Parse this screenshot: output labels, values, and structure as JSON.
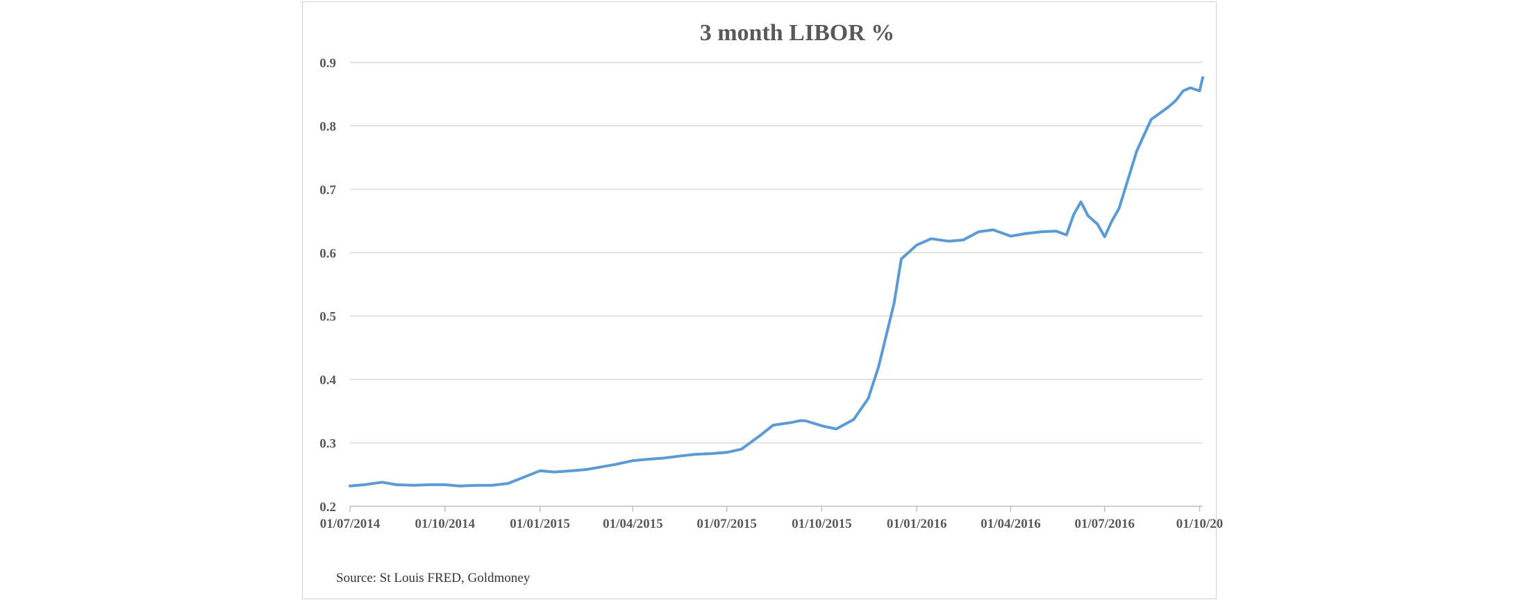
{
  "chart_data": {
    "type": "line",
    "title": "3 month LIBOR %",
    "xlabel": "",
    "ylabel": "",
    "ylim": [
      0.2,
      0.9
    ],
    "y_ticks": [
      "0.2",
      "0.3",
      "0.4",
      "0.5",
      "0.6",
      "0.7",
      "0.8",
      "0.9"
    ],
    "x_ticks": [
      "01/07/2014",
      "01/10/2014",
      "01/01/2015",
      "01/04/2015",
      "01/07/2015",
      "01/10/2015",
      "01/01/2016",
      "01/04/2016",
      "01/07/2016",
      "01/10/20"
    ],
    "x_tick_dates": [
      "2014-07-01",
      "2014-10-01",
      "2015-01-01",
      "2015-04-01",
      "2015-07-01",
      "2015-10-01",
      "2016-01-01",
      "2016-04-01",
      "2016-07-01",
      "2016-10-01"
    ],
    "xlim": [
      "2014-07-01",
      "2016-10-04"
    ],
    "grid": "horizontal",
    "line_color": "#5b9bd5",
    "series": [
      {
        "x": [
          "2014-07-01",
          "2014-07-15",
          "2014-08-01",
          "2014-08-15",
          "2014-09-01",
          "2014-09-15",
          "2014-10-01",
          "2014-10-15",
          "2014-11-01",
          "2014-11-15",
          "2014-12-01",
          "2014-12-15",
          "2015-01-01",
          "2015-01-15",
          "2015-02-01",
          "2015-02-15",
          "2015-03-01",
          "2015-03-15",
          "2015-04-01",
          "2015-04-15",
          "2015-05-01",
          "2015-05-15",
          "2015-06-01",
          "2015-06-15",
          "2015-07-01",
          "2015-07-15",
          "2015-08-01",
          "2015-08-15",
          "2015-09-01",
          "2015-09-10",
          "2015-09-15",
          "2015-10-01",
          "2015-10-15",
          "2015-11-01",
          "2015-11-15",
          "2015-11-25",
          "2015-12-01",
          "2015-12-10",
          "2015-12-17",
          "2016-01-01",
          "2016-01-15",
          "2016-02-01",
          "2016-02-15",
          "2016-03-01",
          "2016-03-15",
          "2016-04-01",
          "2016-04-15",
          "2016-05-01",
          "2016-05-15",
          "2016-05-25",
          "2016-06-01",
          "2016-06-08",
          "2016-06-15",
          "2016-06-24",
          "2016-07-01",
          "2016-07-08",
          "2016-07-15",
          "2016-08-01",
          "2016-08-15",
          "2016-09-01",
          "2016-09-08",
          "2016-09-15",
          "2016-09-22",
          "2016-10-01",
          "2016-10-04"
        ],
        "values": [
          0.232,
          0.234,
          0.238,
          0.234,
          0.233,
          0.234,
          0.234,
          0.232,
          0.233,
          0.233,
          0.236,
          0.245,
          0.256,
          0.254,
          0.256,
          0.258,
          0.262,
          0.266,
          0.272,
          0.274,
          0.276,
          0.279,
          0.282,
          0.283,
          0.285,
          0.29,
          0.31,
          0.328,
          0.332,
          0.335,
          0.335,
          0.327,
          0.322,
          0.337,
          0.37,
          0.42,
          0.46,
          0.52,
          0.59,
          0.612,
          0.622,
          0.618,
          0.62,
          0.633,
          0.636,
          0.626,
          0.63,
          0.633,
          0.634,
          0.628,
          0.66,
          0.68,
          0.658,
          0.645,
          0.625,
          0.65,
          0.67,
          0.76,
          0.81,
          0.83,
          0.84,
          0.855,
          0.86,
          0.855,
          0.876
        ]
      }
    ]
  },
  "source_note": "Source: St Louis FRED, Goldmoney"
}
